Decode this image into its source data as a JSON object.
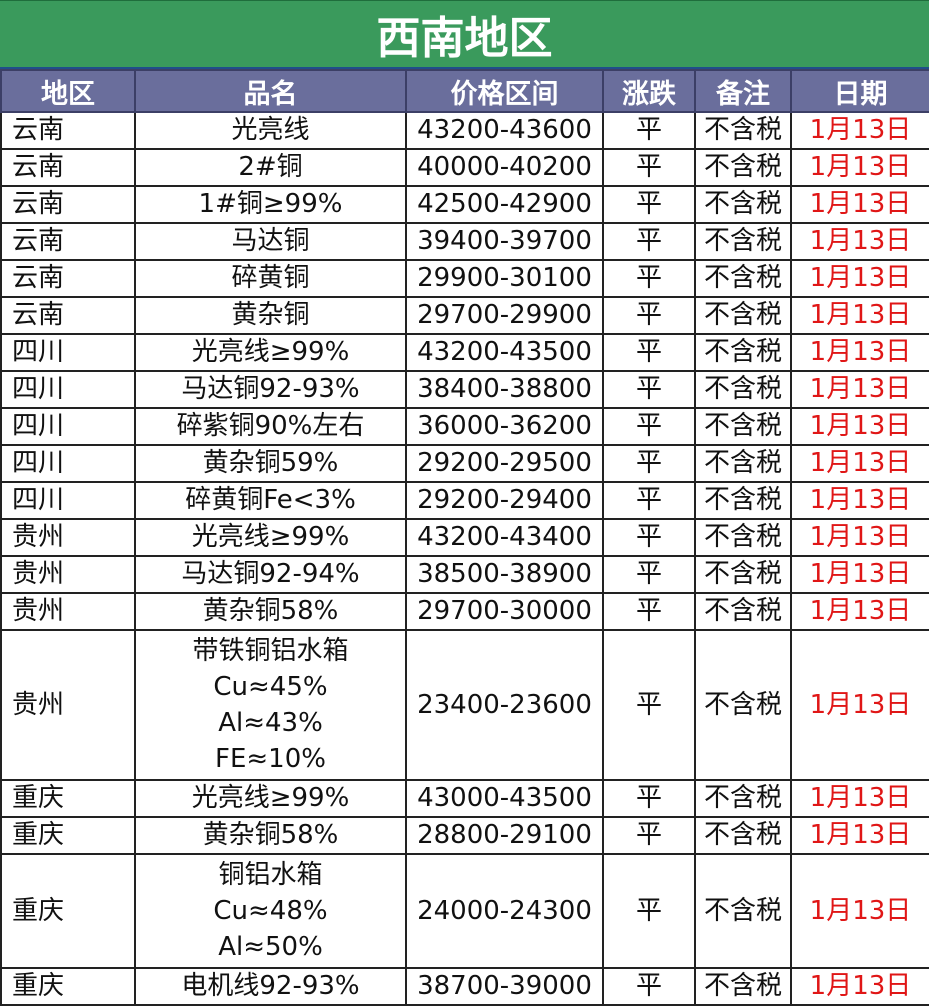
{
  "title": "西南地区",
  "headers": [
    "地区",
    "品名",
    "价格区间",
    "涨跌",
    "备注",
    "日期"
  ],
  "rows": [
    {
      "region": "云南",
      "product": [
        "光亮线"
      ],
      "price": "43200-43600",
      "change": "平",
      "note": "不含税",
      "date": "1月13日"
    },
    {
      "region": "云南",
      "product": [
        "2#铜"
      ],
      "price": "40000-40200",
      "change": "平",
      "note": "不含税",
      "date": "1月13日"
    },
    {
      "region": "云南",
      "product": [
        "1#铜≥99%"
      ],
      "price": "42500-42900",
      "change": "平",
      "note": "不含税",
      "date": "1月13日"
    },
    {
      "region": "云南",
      "product": [
        "马达铜"
      ],
      "price": "39400-39700",
      "change": "平",
      "note": "不含税",
      "date": "1月13日"
    },
    {
      "region": "云南",
      "product": [
        "碎黄铜"
      ],
      "price": "29900-30100",
      "change": "平",
      "note": "不含税",
      "date": "1月13日"
    },
    {
      "region": "云南",
      "product": [
        "黄杂铜"
      ],
      "price": "29700-29900",
      "change": "平",
      "note": "不含税",
      "date": "1月13日"
    },
    {
      "region": "四川",
      "product": [
        "光亮线≥99%"
      ],
      "price": "43200-43500",
      "change": "平",
      "note": "不含税",
      "date": "1月13日"
    },
    {
      "region": "四川",
      "product": [
        "马达铜92-93%"
      ],
      "price": "38400-38800",
      "change": "平",
      "note": "不含税",
      "date": "1月13日"
    },
    {
      "region": "四川",
      "product": [
        "碎紫铜90%左右"
      ],
      "price": "36000-36200",
      "change": "平",
      "note": "不含税",
      "date": "1月13日"
    },
    {
      "region": "四川",
      "product": [
        "黄杂铜59%"
      ],
      "price": "29200-29500",
      "change": "平",
      "note": "不含税",
      "date": "1月13日"
    },
    {
      "region": "四川",
      "product": [
        "碎黄铜Fe<3%"
      ],
      "price": "29200-29400",
      "change": "平",
      "note": "不含税",
      "date": "1月13日"
    },
    {
      "region": "贵州",
      "product": [
        "光亮线≥99%"
      ],
      "price": "43200-43400",
      "change": "平",
      "note": "不含税",
      "date": "1月13日"
    },
    {
      "region": "贵州",
      "product": [
        "马达铜92-94%"
      ],
      "price": "38500-38900",
      "change": "平",
      "note": "不含税",
      "date": "1月13日"
    },
    {
      "region": "贵州",
      "product": [
        "黄杂铜58%"
      ],
      "price": "29700-30000",
      "change": "平",
      "note": "不含税",
      "date": "1月13日"
    },
    {
      "region": "贵州",
      "product": [
        "带铁铜铝水箱",
        "Cu≈45%",
        "Al≈43%",
        "FE≈10%"
      ],
      "price": "23400-23600",
      "change": "平",
      "note": "不含税",
      "date": "1月13日"
    },
    {
      "region": "重庆",
      "product": [
        "光亮线≥99%"
      ],
      "price": "43000-43500",
      "change": "平",
      "note": "不含税",
      "date": "1月13日"
    },
    {
      "region": "重庆",
      "product": [
        "黄杂铜58%"
      ],
      "price": "28800-29100",
      "change": "平",
      "note": "不含税",
      "date": "1月13日"
    },
    {
      "region": "重庆",
      "product": [
        "铜铝水箱",
        "Cu≈48%",
        "Al≈50%"
      ],
      "price": "24000-24300",
      "change": "平",
      "note": "不含税",
      "date": "1月13日"
    },
    {
      "region": "重庆",
      "product": [
        "电机线92-93%"
      ],
      "price": "38700-39000",
      "change": "平",
      "note": "不含税",
      "date": "1月13日"
    }
  ],
  "colors": {
    "title_bg": "#3a9a5c",
    "header_bg": "#6a6e9c",
    "date_text": "#e01616"
  }
}
